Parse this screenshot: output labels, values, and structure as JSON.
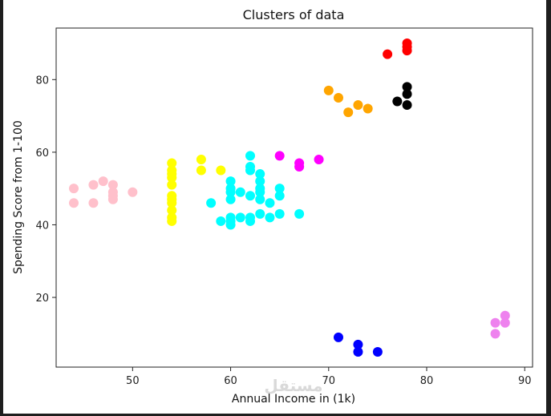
{
  "chart_data": {
    "type": "scatter",
    "title": "Clusters of data",
    "xlabel": "Annual Income in (1k)",
    "ylabel": "Spending Score from 1-100",
    "xlim": [
      42.2,
      90.8
    ],
    "ylim": [
      0.8,
      94.2
    ],
    "xticks": [
      50,
      60,
      70,
      80,
      90
    ],
    "yticks": [
      20,
      40,
      60,
      80
    ],
    "grid": false,
    "series": [
      {
        "color": "#ffc0cb",
        "points": [
          [
            44,
            50
          ],
          [
            44,
            46
          ],
          [
            46,
            51
          ],
          [
            46,
            46
          ],
          [
            47,
            52
          ],
          [
            48,
            51
          ],
          [
            48,
            49
          ],
          [
            48,
            48
          ],
          [
            48,
            47
          ],
          [
            50,
            49
          ]
        ]
      },
      {
        "color": "#ffff00",
        "points": [
          [
            54,
            57
          ],
          [
            54,
            55
          ],
          [
            54,
            54
          ],
          [
            54,
            53
          ],
          [
            54,
            51
          ],
          [
            54,
            48
          ],
          [
            54,
            47
          ],
          [
            54,
            46
          ],
          [
            54,
            44
          ],
          [
            54,
            42
          ],
          [
            54,
            41
          ],
          [
            57,
            58
          ],
          [
            57,
            55
          ],
          [
            59,
            55
          ]
        ]
      },
      {
        "color": "#00ffff",
        "points": [
          [
            58,
            46
          ],
          [
            59,
            41
          ],
          [
            60,
            52
          ],
          [
            60,
            50
          ],
          [
            60,
            49
          ],
          [
            60,
            47
          ],
          [
            60,
            42
          ],
          [
            60,
            41
          ],
          [
            60,
            40
          ],
          [
            61,
            49
          ],
          [
            61,
            42
          ],
          [
            62,
            59
          ],
          [
            62,
            56
          ],
          [
            62,
            55
          ],
          [
            62,
            48
          ],
          [
            62,
            42
          ],
          [
            62,
            41
          ],
          [
            63,
            54
          ],
          [
            63,
            52
          ],
          [
            63,
            50
          ],
          [
            63,
            49
          ],
          [
            63,
            47
          ],
          [
            63,
            43
          ],
          [
            64,
            46
          ],
          [
            64,
            42
          ],
          [
            65,
            50
          ],
          [
            65,
            48
          ],
          [
            65,
            43
          ],
          [
            67,
            43
          ]
        ]
      },
      {
        "color": "#ff00ff",
        "points": [
          [
            65,
            59
          ],
          [
            67,
            57
          ],
          [
            67,
            56
          ],
          [
            69,
            58
          ]
        ]
      },
      {
        "color": "#ffa500",
        "points": [
          [
            70,
            77
          ],
          [
            71,
            75
          ],
          [
            72,
            71
          ],
          [
            73,
            73
          ],
          [
            74,
            72
          ]
        ]
      },
      {
        "color": "#ff0000",
        "points": [
          [
            76,
            87
          ],
          [
            78,
            90
          ],
          [
            78,
            89
          ],
          [
            78,
            88
          ]
        ]
      },
      {
        "color": "#000000",
        "points": [
          [
            77,
            74
          ],
          [
            78,
            78
          ],
          [
            78,
            76
          ],
          [
            78,
            73
          ]
        ]
      },
      {
        "color": "#0000ff",
        "points": [
          [
            71,
            9
          ],
          [
            73,
            7
          ],
          [
            73,
            5
          ],
          [
            75,
            5
          ]
        ]
      },
      {
        "color": "#ee82ee",
        "points": [
          [
            87,
            13
          ],
          [
            87,
            10
          ],
          [
            88,
            15
          ],
          [
            88,
            13
          ]
        ]
      }
    ]
  },
  "watermark": {
    "text": "مستقل"
  }
}
